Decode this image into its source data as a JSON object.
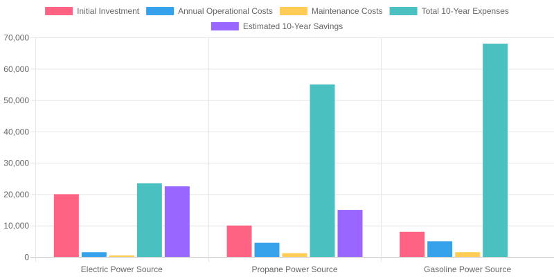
{
  "chart_data": {
    "type": "bar",
    "categories": [
      "Electric Power Source",
      "Propane Power Source",
      "Gasoline Power Source"
    ],
    "series": [
      {
        "name": "Initial Investment",
        "color": "#ff6384",
        "values": [
          20000,
          10000,
          8000
        ]
      },
      {
        "name": "Annual Operational Costs",
        "color": "#36a2eb",
        "values": [
          1500,
          4500,
          5000
        ]
      },
      {
        "name": "Maintenance Costs",
        "color": "#ffcd56",
        "values": [
          500,
          1200,
          1500
        ]
      },
      {
        "name": "Total 10-Year Expenses",
        "color": "#4bc0c0",
        "values": [
          23500,
          55000,
          68000
        ]
      },
      {
        "name": "Estimated 10-Year Savings",
        "color": "#9966ff",
        "values": [
          22500,
          15000,
          0
        ]
      }
    ],
    "ylim": [
      0,
      70000
    ],
    "yticks": [
      "0",
      "10,000",
      "20,000",
      "30,000",
      "40,000",
      "50,000",
      "60,000",
      "70,000"
    ],
    "grid": true,
    "legend": "top"
  }
}
